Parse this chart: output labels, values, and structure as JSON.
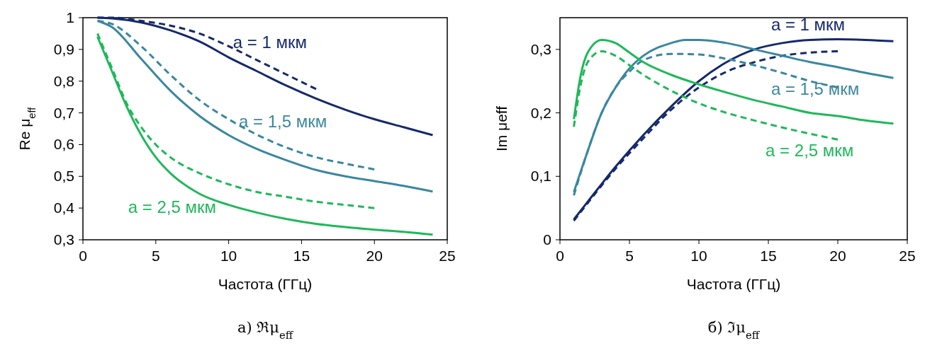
{
  "chart_data": [
    {
      "type": "line",
      "title": "а) ℜμ$_{eff}$",
      "xlabel": "Частота (ГГц)",
      "ylabel": "Re μ$_{eff}$",
      "xlim": [
        0,
        25
      ],
      "xticks": [
        0,
        5,
        10,
        15,
        20,
        25
      ],
      "ylim": [
        0.3,
        1
      ],
      "yticks": [
        {
          "value": 0.3,
          "label": "0,3"
        },
        {
          "value": 0.4,
          "label": "0,4"
        },
        {
          "value": 0.5,
          "label": "0,5"
        },
        {
          "value": 0.6,
          "label": "0,6"
        },
        {
          "value": 0.7,
          "label": "0,7"
        },
        {
          "value": 0.8,
          "label": "0,8"
        },
        {
          "value": 0.9,
          "label": "0,9"
        },
        {
          "value": 1,
          "label": "1"
        }
      ],
      "grid": false,
      "marker": "none",
      "series": [
        {
          "name": "a = 1 мкм",
          "color": "#15296b",
          "line_style": "solid",
          "x": [
            1,
            2,
            4,
            6,
            8,
            10,
            12,
            14,
            16,
            18,
            20,
            22,
            24
          ],
          "values": [
            1.0,
            0.998,
            0.985,
            0.96,
            0.925,
            0.875,
            0.83,
            0.785,
            0.745,
            0.71,
            0.68,
            0.655,
            0.63
          ]
        },
        {
          "color": "#15296b",
          "line_style": "dashed",
          "x": [
            1,
            2,
            4,
            6,
            8,
            10,
            12,
            14,
            16
          ],
          "values": [
            1.0,
            1.0,
            0.99,
            0.975,
            0.95,
            0.91,
            0.865,
            0.82,
            0.775
          ]
        },
        {
          "name": "a = 1,5 мкм",
          "color": "#3a87a0",
          "line_style": "solid",
          "x": [
            1,
            2,
            4,
            6,
            8,
            10,
            12,
            14,
            16,
            18,
            20,
            22,
            24
          ],
          "values": [
            0.99,
            0.97,
            0.87,
            0.77,
            0.69,
            0.63,
            0.585,
            0.55,
            0.52,
            0.5,
            0.485,
            0.47,
            0.452
          ]
        },
        {
          "color": "#3a87a0",
          "line_style": "dashed",
          "x": [
            1,
            2,
            4,
            6,
            8,
            10,
            12,
            14,
            16,
            18,
            20
          ],
          "values": [
            0.99,
            0.98,
            0.91,
            0.82,
            0.74,
            0.68,
            0.63,
            0.59,
            0.56,
            0.54,
            0.522
          ]
        },
        {
          "name": "a = 2,5 мкм",
          "color": "#1fb85a",
          "line_style": "solid",
          "x": [
            1,
            2,
            3,
            4,
            5,
            6,
            8,
            10,
            12,
            14,
            16,
            18,
            20,
            22,
            24
          ],
          "values": [
            0.94,
            0.83,
            0.72,
            0.63,
            0.56,
            0.51,
            0.445,
            0.41,
            0.385,
            0.365,
            0.35,
            0.34,
            0.332,
            0.325,
            0.316
          ]
        },
        {
          "color": "#1fb85a",
          "line_style": "dashed",
          "x": [
            1,
            2,
            3,
            4,
            5,
            6,
            8,
            10,
            12,
            14,
            16,
            18,
            20
          ],
          "values": [
            0.95,
            0.84,
            0.73,
            0.655,
            0.6,
            0.56,
            0.51,
            0.475,
            0.45,
            0.435,
            0.42,
            0.41,
            0.4
          ]
        }
      ]
    },
    {
      "type": "line",
      "title": "б) ℑμ$_{eff}$",
      "xlabel": "Частота (ГГц)",
      "ylabel": "Im μeff",
      "xlim": [
        0,
        25
      ],
      "xticks": [
        0,
        5,
        10,
        15,
        20,
        25
      ],
      "ylim": [
        0,
        0.35
      ],
      "yticks": [
        0,
        {
          "value": 0.1,
          "label": "0,1"
        },
        {
          "value": 0.2,
          "label": "0,2"
        },
        {
          "value": 0.3,
          "label": "0,3"
        }
      ],
      "grid": false,
      "marker": "none",
      "series": [
        {
          "name": "a = 1 мкм",
          "color": "#15296b",
          "line_style": "solid",
          "x": [
            1,
            2,
            4,
            6,
            8,
            10,
            12,
            14,
            16,
            18,
            20,
            22,
            24
          ],
          "values": [
            0.032,
            0.06,
            0.115,
            0.165,
            0.21,
            0.25,
            0.28,
            0.3,
            0.31,
            0.315,
            0.316,
            0.315,
            0.313
          ]
        },
        {
          "color": "#15296b",
          "line_style": "dashed",
          "x": [
            1,
            2,
            4,
            6,
            8,
            10,
            12,
            14,
            16,
            18,
            20
          ],
          "values": [
            0.03,
            0.058,
            0.112,
            0.16,
            0.205,
            0.24,
            0.265,
            0.28,
            0.29,
            0.295,
            0.297
          ]
        },
        {
          "name": "a = 1,5 мкм",
          "color": "#3a87a0",
          "line_style": "solid",
          "x": [
            1,
            2,
            3,
            4,
            5,
            6,
            8,
            9,
            10,
            12,
            14,
            16,
            18,
            20,
            22,
            24
          ],
          "values": [
            0.075,
            0.14,
            0.2,
            0.24,
            0.27,
            0.29,
            0.31,
            0.315,
            0.315,
            0.31,
            0.3,
            0.29,
            0.28,
            0.272,
            0.263,
            0.255
          ]
        },
        {
          "color": "#3a87a0",
          "line_style": "dashed",
          "x": [
            1,
            2,
            3,
            4,
            5,
            6,
            8,
            10,
            12,
            14,
            16,
            18,
            20
          ],
          "values": [
            0.07,
            0.14,
            0.2,
            0.24,
            0.265,
            0.283,
            0.293,
            0.292,
            0.285,
            0.275,
            0.263,
            0.25,
            0.24
          ]
        },
        {
          "name": "a = 2,5 мкм",
          "color": "#1fb85a",
          "line_style": "solid",
          "x": [
            1,
            1.5,
            2,
            3,
            4,
            5,
            6,
            8,
            10,
            12,
            14,
            16,
            18,
            20,
            22,
            24
          ],
          "values": [
            0.19,
            0.26,
            0.295,
            0.315,
            0.31,
            0.295,
            0.28,
            0.26,
            0.245,
            0.232,
            0.22,
            0.21,
            0.2,
            0.195,
            0.188,
            0.183
          ]
        },
        {
          "color": "#1fb85a",
          "line_style": "dashed",
          "x": [
            1,
            1.5,
            2,
            3,
            4,
            5,
            6,
            8,
            10,
            12,
            14,
            16,
            18,
            20
          ],
          "values": [
            0.178,
            0.245,
            0.28,
            0.297,
            0.29,
            0.275,
            0.26,
            0.235,
            0.215,
            0.2,
            0.188,
            0.177,
            0.167,
            0.158
          ]
        }
      ]
    }
  ]
}
